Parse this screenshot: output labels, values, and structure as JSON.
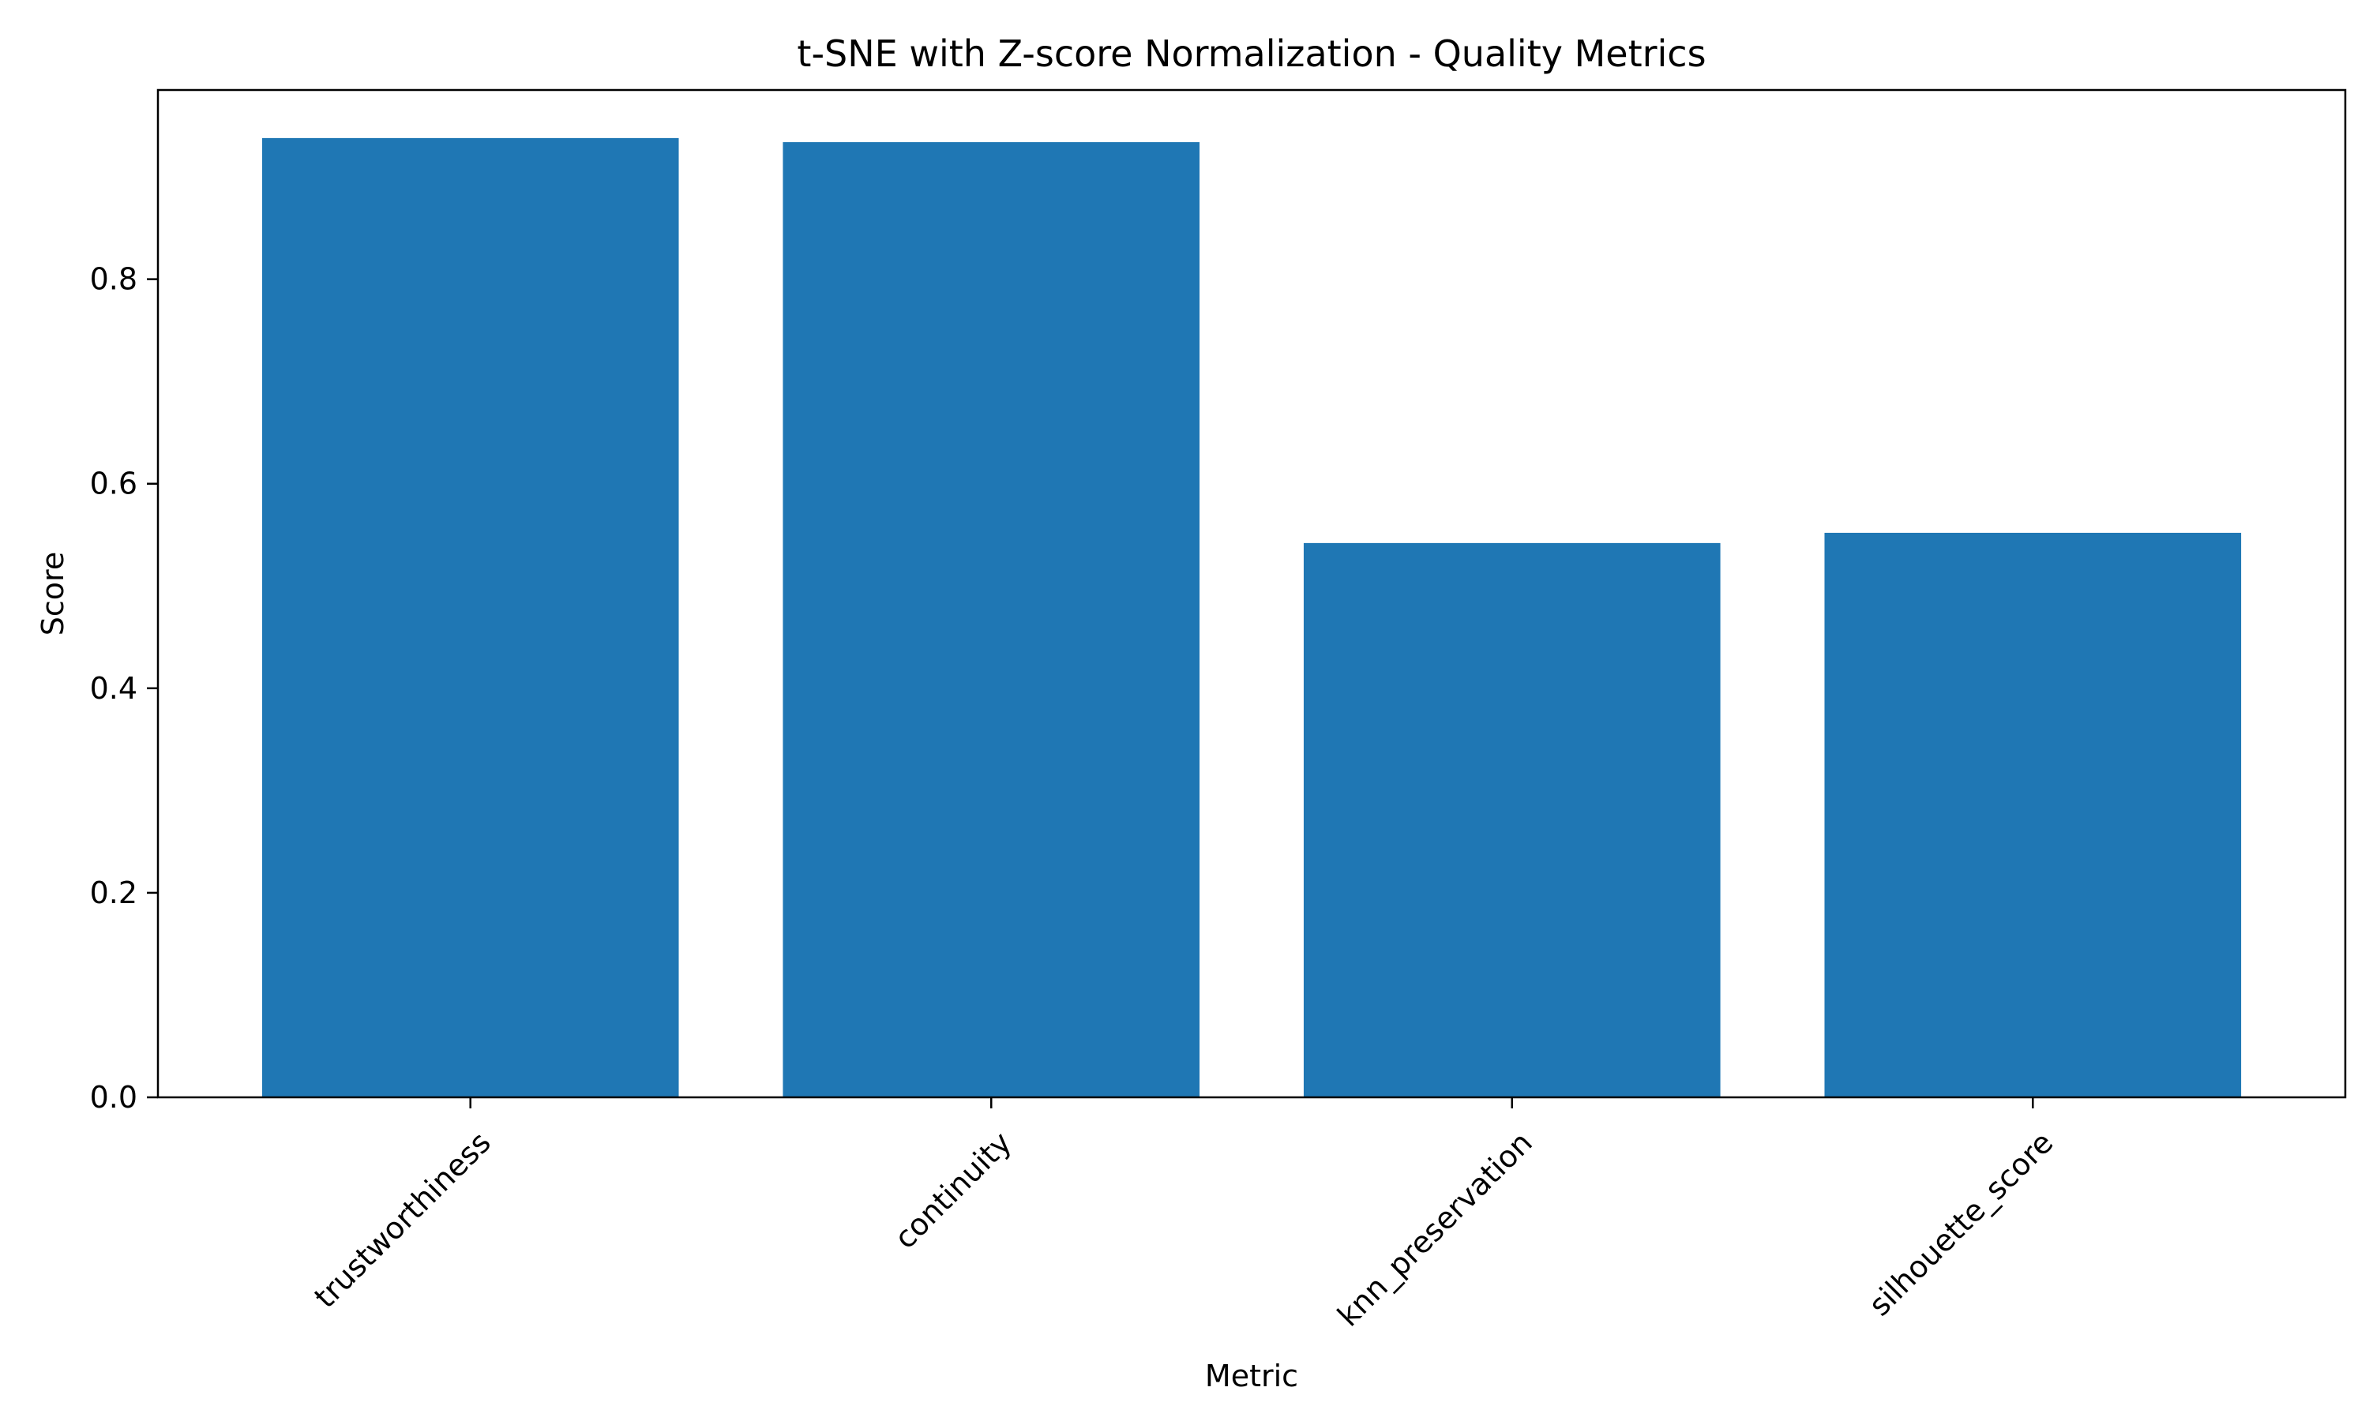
{
  "chart_data": {
    "type": "bar",
    "title": "t-SNE with Z-score Normalization - Quality Metrics",
    "xlabel": "Metric",
    "ylabel": "Score",
    "categories": [
      "trustworthiness",
      "continuity",
      "knn_preservation",
      "silhouette_score"
    ],
    "values": [
      0.938,
      0.934,
      0.542,
      0.552
    ],
    "ylim": [
      0,
      0.985
    ],
    "yticks": [
      0.0,
      0.2,
      0.4,
      0.6,
      0.8
    ],
    "ytick_labels": [
      "0.0",
      "0.2",
      "0.4",
      "0.6",
      "0.8"
    ],
    "grid": false,
    "bar_color": "#1f77b4",
    "xtick_rotation_deg": -45
  }
}
